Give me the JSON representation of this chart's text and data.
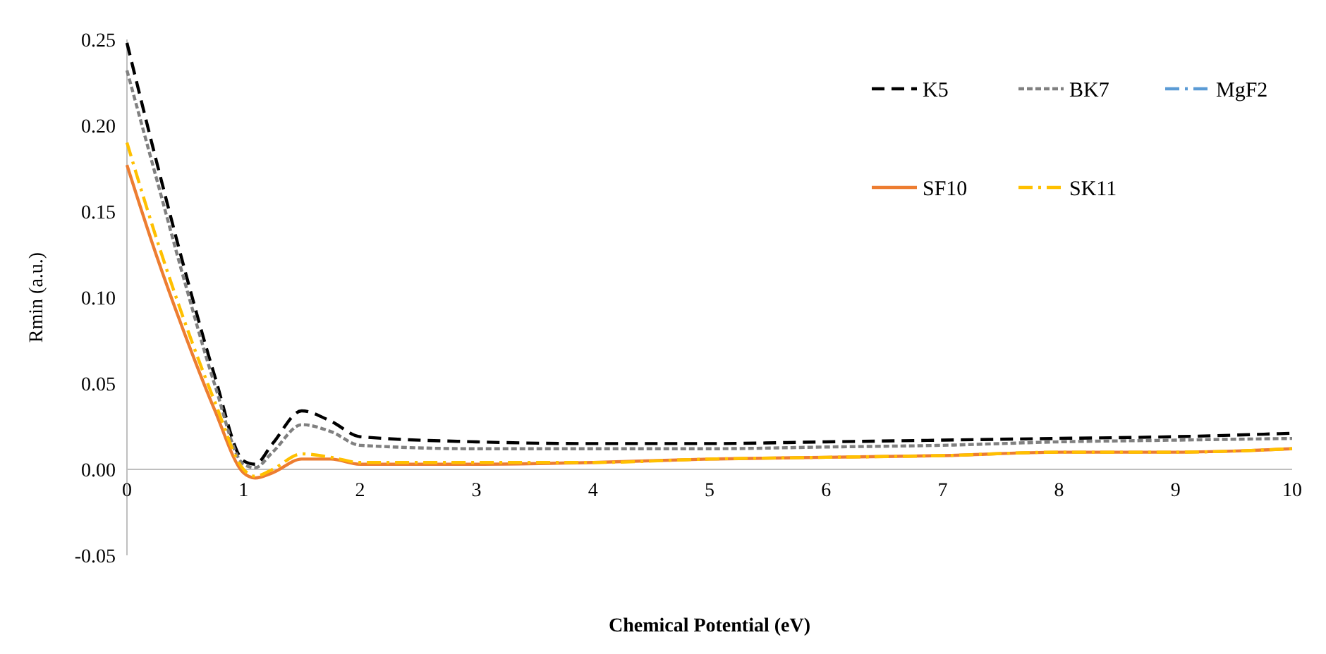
{
  "chart_data": {
    "type": "line",
    "xlabel": "Chemical Potential (eV)",
    "ylabel": "Rmin (a.u.)",
    "x": [
      0,
      0.25,
      0.5,
      0.75,
      1,
      1.1,
      1.25,
      1.5,
      1.75,
      2,
      3,
      4,
      5,
      6,
      7,
      8,
      9,
      10
    ],
    "xlim": [
      0,
      10
    ],
    "xticks": [
      0,
      1,
      2,
      3,
      4,
      5,
      6,
      7,
      8,
      9,
      10
    ],
    "ylim": [
      -0.05,
      0.25
    ],
    "yticks": [
      {
        "value": -0.05,
        "label": "-0.05"
      },
      {
        "value": 0,
        "label": "0.00"
      },
      {
        "value": 0.05,
        "label": "0.05"
      },
      {
        "value": 0.1,
        "label": "0.10"
      },
      {
        "value": 0.15,
        "label": "0.15"
      },
      {
        "value": 0.2,
        "label": "0.20"
      },
      {
        "value": 0.25,
        "label": "0.25"
      }
    ],
    "grid": false,
    "legend": "top right",
    "marker": "none",
    "series": [
      {
        "name": "K5",
        "color": "#000000",
        "line_style": "dashed",
        "values": [
          0.248,
          0.18,
          0.115,
          0.055,
          0.005,
          0.003,
          0.015,
          0.034,
          0.028,
          0.019,
          0.016,
          0.015,
          0.015,
          0.016,
          0.017,
          0.018,
          0.019,
          0.021
        ]
      },
      {
        "name": "BK7",
        "color": "#808080",
        "line_style": "dotted",
        "values": [
          0.232,
          0.17,
          0.108,
          0.05,
          0.003,
          0.001,
          0.01,
          0.026,
          0.022,
          0.014,
          0.012,
          0.012,
          0.012,
          0.013,
          0.014,
          0.016,
          0.017,
          0.018
        ]
      },
      {
        "name": "MgF2",
        "color": "#5b9bd5",
        "line_style": "dashdot",
        "values": [
          null,
          null,
          null,
          null,
          null,
          null,
          null,
          null,
          null,
          null,
          null,
          null,
          null,
          null,
          null,
          null,
          null,
          null
        ]
      },
      {
        "name": "SF10",
        "color": "#ed7d31",
        "line_style": "solid",
        "values": [
          0.177,
          0.125,
          0.078,
          0.035,
          -0.002,
          -0.005,
          -0.002,
          0.006,
          0.006,
          0.003,
          0.003,
          0.004,
          0.006,
          0.007,
          0.008,
          0.01,
          0.01,
          0.012
        ]
      },
      {
        "name": "SK11",
        "color": "#ffc000",
        "line_style": "dashdot",
        "values": [
          0.19,
          0.135,
          0.085,
          0.04,
          0.0,
          -0.004,
          0.0,
          0.009,
          0.007,
          0.004,
          0.004,
          0.004,
          0.006,
          0.007,
          0.008,
          0.01,
          0.01,
          0.012
        ]
      }
    ]
  }
}
